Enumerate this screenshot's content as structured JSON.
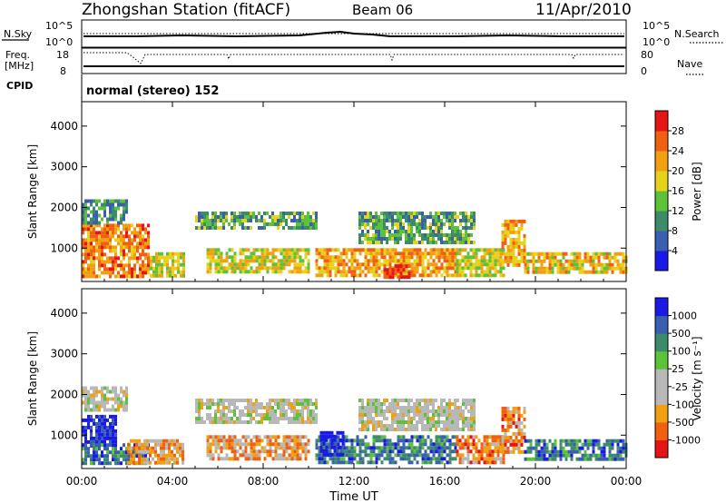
{
  "header": {
    "title": "Zhongshan Station (fitACF)",
    "beam": "Beam 06",
    "date": "11/Apr/2010"
  },
  "status_panels": {
    "nsky_label": "N.Sky",
    "nsky_ticks": [
      "10^5",
      "10^0"
    ],
    "nsearch_label": "N.Search",
    "nsearch_ticks": [
      "10^5",
      "10^0"
    ],
    "freq_label": "Freq.",
    "freq_unit": "[MHz]",
    "freq_ticks": [
      "18",
      "8"
    ],
    "nave_label": "Nave",
    "nave_ticks": [
      "80",
      "0"
    ],
    "cpid_label": "CPID",
    "cpid_value": "normal (stereo) 152"
  },
  "colors": {
    "power": [
      "#1a1ae6",
      "#3a5fb0",
      "#3c8c6a",
      "#5cc23a",
      "#e6d21a",
      "#f0a010",
      "#f06010",
      "#e61414"
    ],
    "velocity": [
      "#e61414",
      "#f06010",
      "#f0a010",
      "#b8b8b8",
      "#b8b8b8",
      "#5cc23a",
      "#3c8c6a",
      "#3a5fb0",
      "#1a1ae6"
    ]
  },
  "chart_data": [
    {
      "type": "heatmap",
      "name": "power",
      "xlabel": "Time UT",
      "ylabel": "Slant Range [km]",
      "x_ticks": [
        "00:00",
        "04:00",
        "08:00",
        "12:00",
        "16:00",
        "20:00",
        "00:00"
      ],
      "y_ticks": [
        1000,
        2000,
        3000,
        4000
      ],
      "xlim_hours": [
        0,
        24
      ],
      "ylim_km": [
        180,
        4600
      ],
      "colorbar_label": "Power [dB]",
      "colorbar_ticks": [
        "4",
        "8",
        "12",
        "16",
        "20",
        "24",
        "28"
      ],
      "regions": [
        {
          "t0": 0.0,
          "t1": 3.0,
          "r0": 300,
          "r1": 1600,
          "level": 5.5
        },
        {
          "t0": 0.0,
          "t1": 2.0,
          "r0": 1600,
          "r1": 2200,
          "level": 2
        },
        {
          "t0": 3.0,
          "t1": 4.5,
          "r0": 300,
          "r1": 900,
          "level": 4
        },
        {
          "t0": 5.0,
          "t1": 10.3,
          "r0": 1500,
          "r1": 1900,
          "level": 2.5
        },
        {
          "t0": 5.5,
          "t1": 10.0,
          "r0": 400,
          "r1": 1000,
          "level": 4
        },
        {
          "t0": 10.3,
          "t1": 16.5,
          "r0": 300,
          "r1": 1000,
          "level": 5
        },
        {
          "t0": 12.2,
          "t1": 17.3,
          "r0": 1100,
          "r1": 1900,
          "level": 2.5
        },
        {
          "t0": 13.3,
          "t1": 14.5,
          "r0": 250,
          "r1": 600,
          "level": 7
        },
        {
          "t0": 16.5,
          "t1": 18.6,
          "r0": 300,
          "r1": 1000,
          "level": 4
        },
        {
          "t0": 18.5,
          "t1": 19.5,
          "r0": 600,
          "r1": 1700,
          "level": 5
        },
        {
          "t0": 19.5,
          "t1": 24.0,
          "r0": 400,
          "r1": 900,
          "level": 4.5
        }
      ]
    },
    {
      "type": "heatmap",
      "name": "velocity",
      "xlabel": "Time UT",
      "ylabel": "Slant Range [km]",
      "x_ticks": [
        "00:00",
        "04:00",
        "08:00",
        "12:00",
        "16:00",
        "20:00",
        "00:00"
      ],
      "y_ticks": [
        1000,
        2000,
        3000,
        4000
      ],
      "xlim_hours": [
        0,
        24
      ],
      "ylim_km": [
        180,
        4600
      ],
      "colorbar_label": "Velocity [m s⁻¹]",
      "colorbar_ticks": [
        "-1000",
        "-500",
        "-100",
        "-25",
        "25",
        "100",
        "500",
        "1000"
      ],
      "regions": [
        {
          "t0": 0.0,
          "t1": 1.5,
          "r0": 700,
          "r1": 1500,
          "level": 8
        },
        {
          "t0": 0.0,
          "t1": 3.0,
          "r0": 300,
          "r1": 800,
          "level": 6.5
        },
        {
          "t0": 2.0,
          "t1": 4.5,
          "r0": 300,
          "r1": 900,
          "level": 2
        },
        {
          "t0": 0.0,
          "t1": 2.0,
          "r0": 1600,
          "r1": 2200,
          "level": 3.5
        },
        {
          "t0": 5.0,
          "t1": 10.3,
          "r0": 1300,
          "r1": 1900,
          "level": 3.5
        },
        {
          "t0": 5.5,
          "t1": 10.0,
          "r0": 400,
          "r1": 1000,
          "level": 2
        },
        {
          "t0": 10.3,
          "t1": 16.5,
          "r0": 300,
          "r1": 1000,
          "level": 6.5
        },
        {
          "t0": 12.2,
          "t1": 17.3,
          "r0": 1100,
          "r1": 1900,
          "level": 3.5
        },
        {
          "t0": 10.5,
          "t1": 11.5,
          "r0": 500,
          "r1": 1100,
          "level": 8.5
        },
        {
          "t0": 16.5,
          "t1": 18.6,
          "r0": 300,
          "r1": 1000,
          "level": 1.5
        },
        {
          "t0": 18.5,
          "t1": 19.5,
          "r0": 600,
          "r1": 1700,
          "level": 1.5
        },
        {
          "t0": 19.5,
          "t1": 24.0,
          "r0": 400,
          "r1": 900,
          "level": 6.5
        }
      ]
    }
  ]
}
